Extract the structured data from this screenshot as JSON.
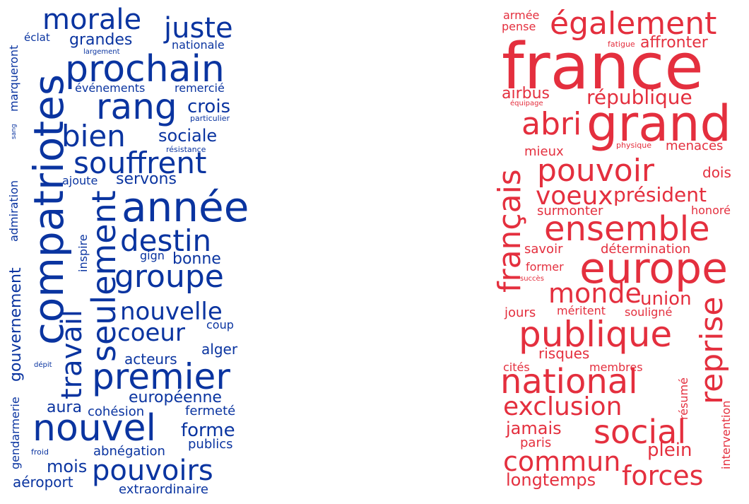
{
  "colors": {
    "blue": "#0a34a0",
    "red": "#e42f3e"
  },
  "clouds": {
    "blue": {
      "words": [
        "morale",
        "juste",
        "grandes",
        "nationale",
        "éclat",
        "largement",
        "prochain",
        "compatriotes",
        "marqueront",
        "rang",
        "crois",
        "événements",
        "remercié",
        "particulier",
        "bien",
        "sociale",
        "sang",
        "résistance",
        "souffrent",
        "admiration",
        "servons",
        "ajoute",
        "année",
        "seulement",
        "inspire",
        "destin",
        "gign",
        "bonne",
        "groupe",
        "gouvernement",
        "travail",
        "nouvelle",
        "coeur",
        "coup",
        "alger",
        "acteurs",
        "dépit",
        "premier",
        "européenne",
        "gendarmerie",
        "aura",
        "cohésion",
        "fermeté",
        "nouvel",
        "forme",
        "froid",
        "abnégation",
        "publics",
        "mois",
        "pouvoirs",
        "aéroport",
        "extraordinaire"
      ]
    },
    "red": {
      "words": [
        "armée",
        "pense",
        "également",
        "france",
        "fatigue",
        "affronter",
        "airbus",
        "république",
        "équipage",
        "abri",
        "grand",
        "physique",
        "menaces",
        "mieux",
        "pouvoir",
        "dois",
        "français",
        "voeux",
        "président",
        "surmonter",
        "honoré",
        "ensemble",
        "savoir",
        "détermination",
        "europe",
        "former",
        "succès",
        "monde",
        "union",
        "jours",
        "méritent",
        "souligné",
        "reprise",
        "publique",
        "risques",
        "cités",
        "membres",
        "national",
        "résumé",
        "exclusion",
        "social",
        "jamais",
        "intervention",
        "paris",
        "plein",
        "commun",
        "longtemps",
        "forces"
      ]
    }
  }
}
